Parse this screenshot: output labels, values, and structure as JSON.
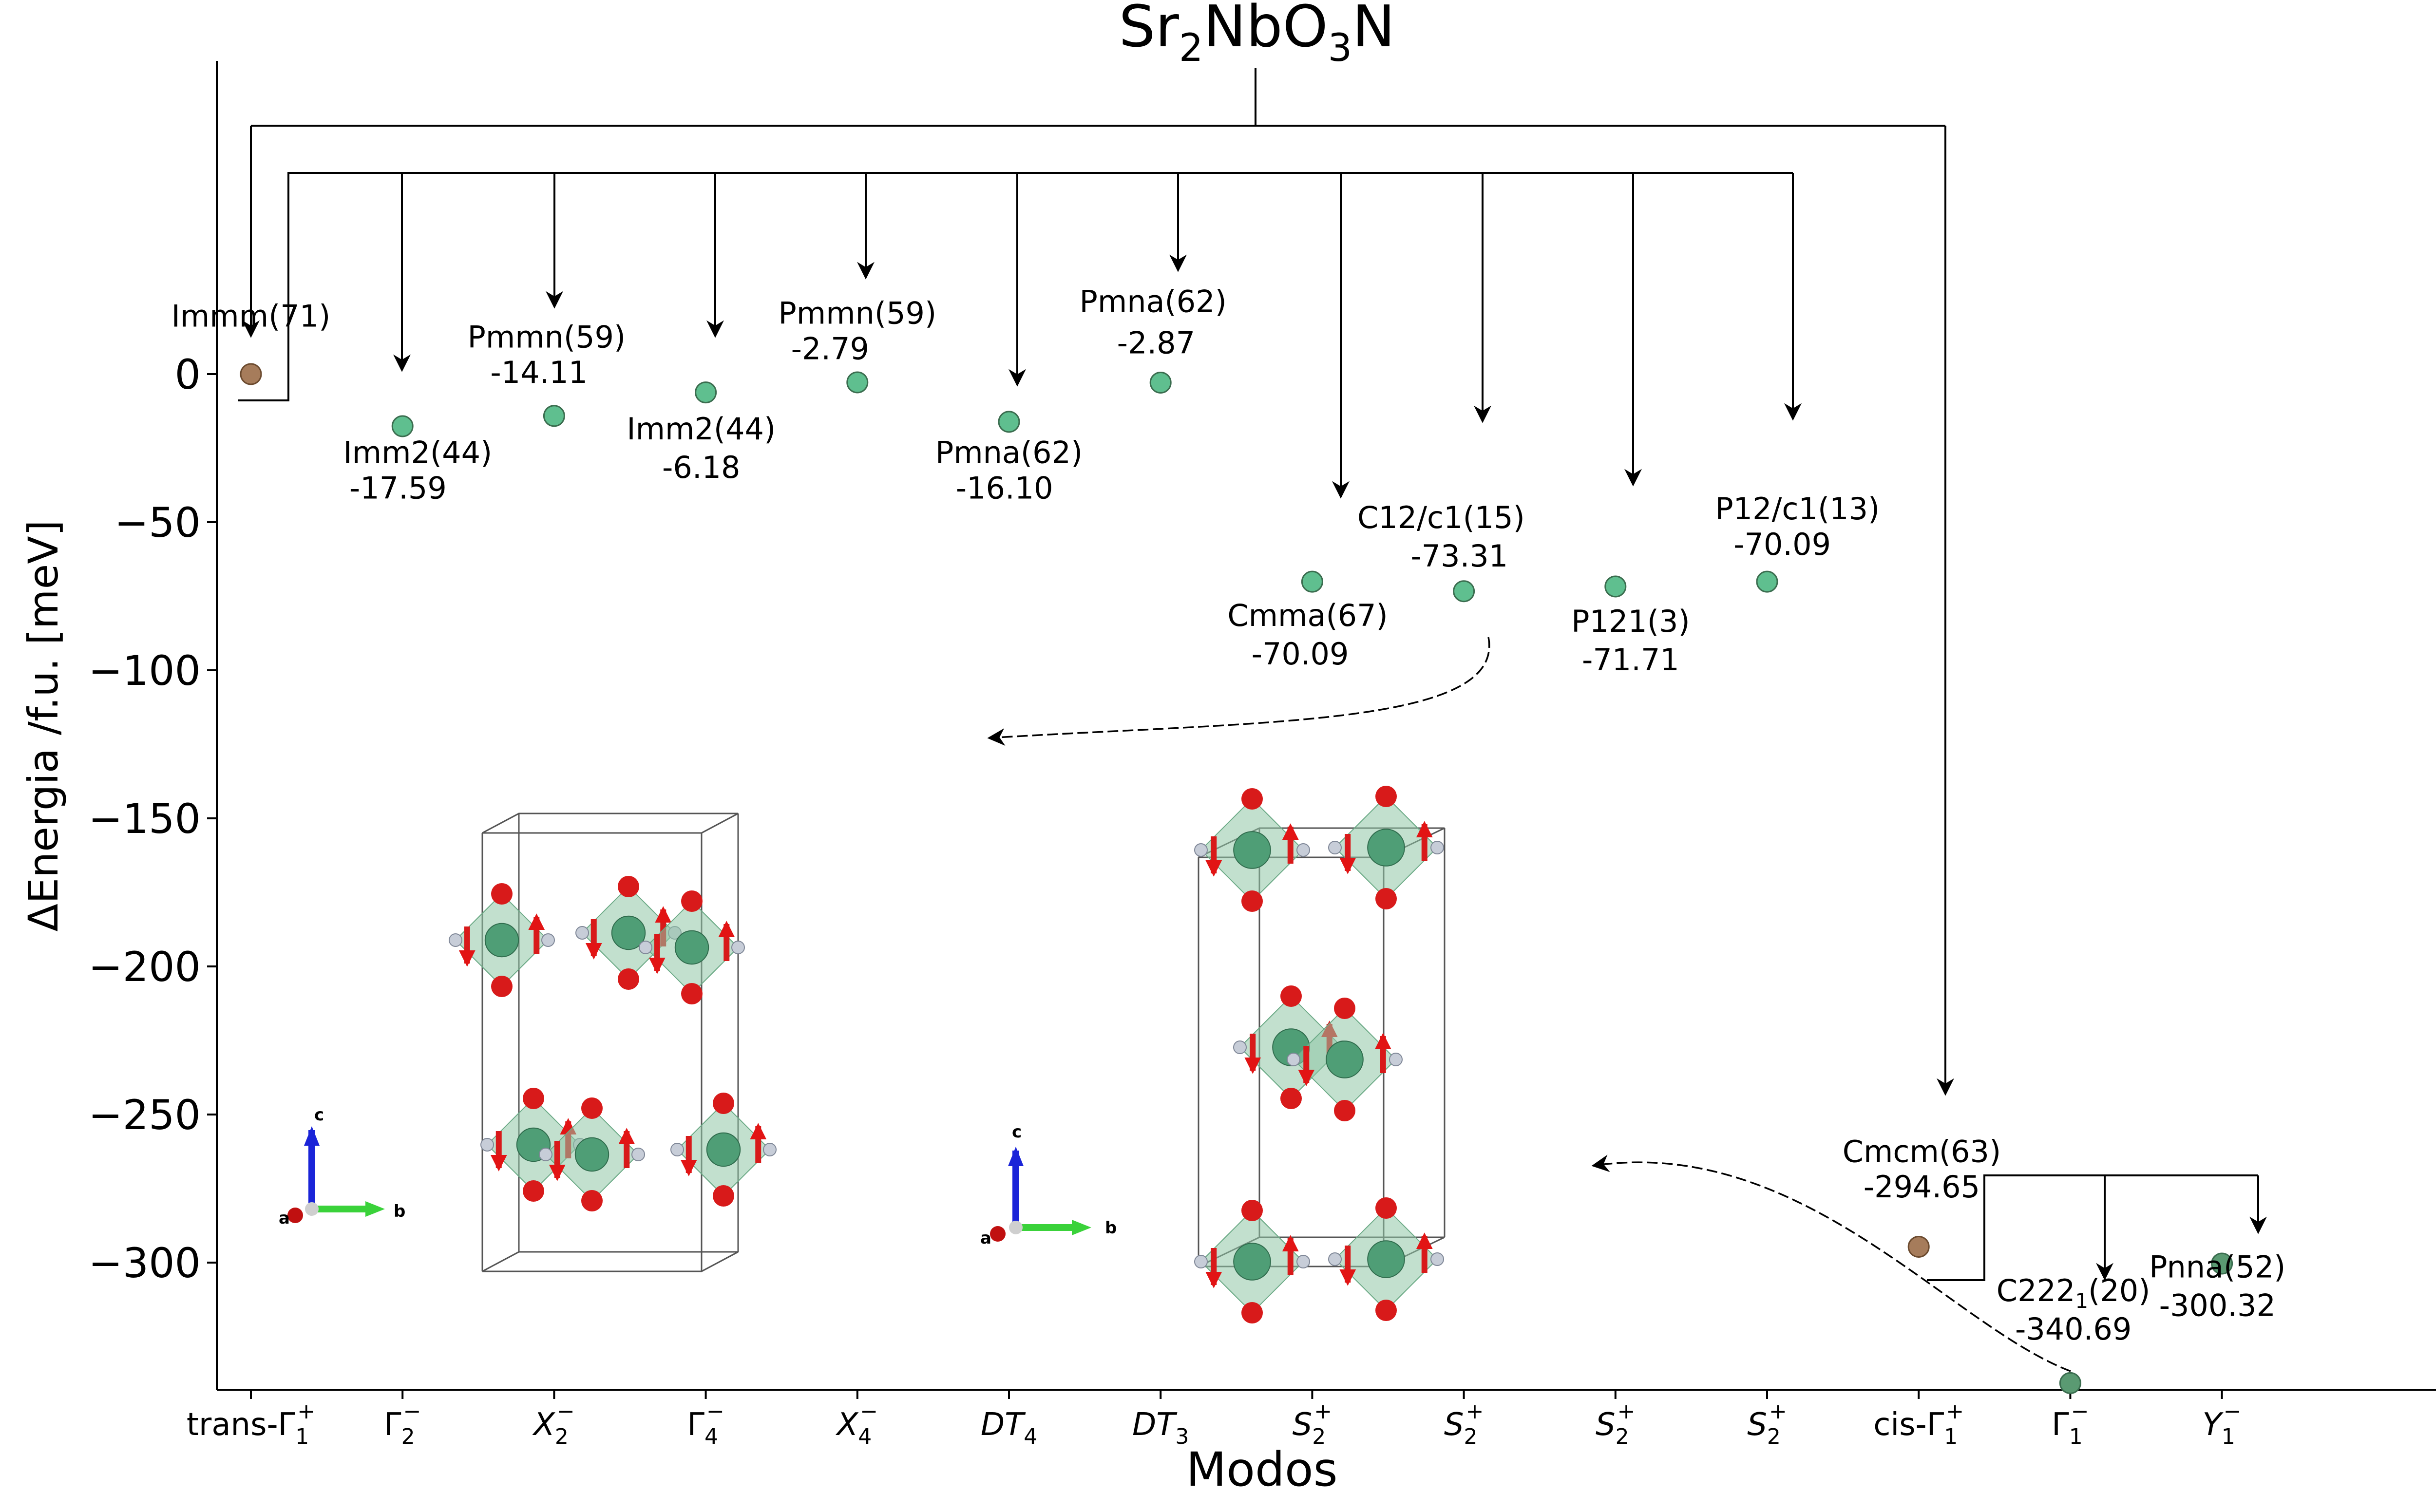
{
  "chart_data": {
    "type": "scatter",
    "title": "Sr2NbO3N",
    "title_parts": [
      "Sr",
      "2",
      "NbO",
      "3",
      "N"
    ],
    "title_color": "#7a5133",
    "xlabel": "Modos",
    "ylabel": "ΔEnergia /f.u. [meV]",
    "ylim": [
      -343,
      42
    ],
    "yticks": [
      0,
      -50,
      -100,
      -150,
      -200,
      -250,
      -300
    ],
    "ytick_labels": [
      "0",
      "−50",
      "−100",
      "−150",
      "−200",
      "−250",
      "−300"
    ],
    "x_ticks": [
      {
        "base": "trans-Γ",
        "sub": "1",
        "sup": "+",
        "italic": false
      },
      {
        "base": "Γ",
        "sub": "2",
        "sup": "−",
        "italic": false
      },
      {
        "base": "X",
        "sub": "2",
        "sup": "−",
        "italic": true
      },
      {
        "base": "Γ",
        "sub": "4",
        "sup": "−",
        "italic": false
      },
      {
        "base": "X",
        "sub": "4",
        "sup": "−",
        "italic": true
      },
      {
        "base": "DT",
        "sub": "4",
        "sup": "",
        "italic": true
      },
      {
        "base": "DT",
        "sub": "3",
        "sup": "",
        "italic": true
      },
      {
        "base": "S",
        "sub": "2",
        "sup": "+",
        "italic": true
      },
      {
        "base": "S",
        "sub": "2",
        "sup": "+",
        "italic": true
      },
      {
        "base": "S",
        "sub": "2",
        "sup": "+",
        "italic": true
      },
      {
        "base": "S",
        "sub": "2",
        "sup": "+",
        "italic": true
      },
      {
        "base": "cis-Γ",
        "sub": "1",
        "sup": "+",
        "italic": false
      },
      {
        "base": "Γ",
        "sub": "1",
        "sup": "−",
        "italic": false
      },
      {
        "base": "Y",
        "sub": "1",
        "sup": "−",
        "italic": true
      }
    ],
    "points": [
      {
        "x": 0,
        "y": 0,
        "group": "Immm(71)",
        "value": "",
        "color": "#a67c5b"
      },
      {
        "x": 1,
        "y": -17.59,
        "group": "Imm2(44)",
        "value": "-17.59",
        "color": "#5fbf8f"
      },
      {
        "x": 2,
        "y": -14.11,
        "group": "Pmmn(59)",
        "value": "-14.11",
        "color": "#5fbf8f"
      },
      {
        "x": 3,
        "y": -6.18,
        "group": "Imm2(44)",
        "value": "-6.18",
        "color": "#5fbf8f"
      },
      {
        "x": 4,
        "y": -2.79,
        "group": "Pmmn(59)",
        "value": "-2.79",
        "color": "#5fbf8f"
      },
      {
        "x": 5,
        "y": -16.1,
        "group": "Pmna(62)",
        "value": "-16.10",
        "color": "#5fbf8f"
      },
      {
        "x": 6,
        "y": -2.87,
        "group": "Pmna(62)",
        "value": "-2.87",
        "color": "#5fbf8f"
      },
      {
        "x": 7,
        "y": -70.09,
        "group": "Cmma(67)",
        "value": "-70.09",
        "color": "#5fbf8f"
      },
      {
        "x": 8,
        "y": -73.31,
        "group": "C12/c1(15)",
        "value": "-73.31",
        "color": "#5fbf8f"
      },
      {
        "x": 9,
        "y": -71.71,
        "group": "P121(3)",
        "value": "-71.71",
        "color": "#5fbf8f"
      },
      {
        "x": 10,
        "y": -70.09,
        "group": "P12/c1(13)",
        "value": "-70.09",
        "color": "#5fbf8f"
      },
      {
        "x": 11,
        "y": -294.65,
        "group": "Cmcm(63)",
        "value": "-294.65",
        "color": "#a67c5b"
      },
      {
        "x": 12,
        "y": -340.69,
        "group": "C2221(20)",
        "value": "-340.69",
        "color": "#5a9a72"
      },
      {
        "x": 13,
        "y": -300.32,
        "group": "Pnna(52)",
        "value": "-300.32",
        "color": "#5a9a72"
      }
    ],
    "annotations": [
      {
        "text": "Immm(71)",
        "x": 0,
        "y": 16
      },
      {
        "text": "Imm2(44)",
        "x": 1.1,
        "y": -30
      },
      {
        "text": "-17.59",
        "x": 0.97,
        "y": -42
      },
      {
        "text": "Pmmn(59)",
        "x": 1.95,
        "y": 9
      },
      {
        "text": "-14.11",
        "x": 1.9,
        "y": -3
      },
      {
        "text": "Imm2(44)",
        "x": 2.97,
        "y": -22
      },
      {
        "text": "-6.18",
        "x": 2.97,
        "y": -35
      },
      {
        "text": "Pmmn(59)",
        "x": 4.0,
        "y": 17
      },
      {
        "text": "-2.79",
        "x": 3.82,
        "y": 5
      },
      {
        "text": "Pmna(62)",
        "x": 5.0,
        "y": -30
      },
      {
        "text": "-16.10",
        "x": 4.97,
        "y": -42
      },
      {
        "text": "Pmna(62)",
        "x": 5.95,
        "y": 21
      },
      {
        "text": "-2.87",
        "x": 5.97,
        "y": 7
      },
      {
        "text": "Cmma(67)",
        "x": 6.97,
        "y": -85
      },
      {
        "text": "-70.09",
        "x": 6.92,
        "y": -98
      },
      {
        "text": "C12/c1(15)",
        "x": 7.85,
        "y": -52
      },
      {
        "text": "-73.31",
        "x": 7.97,
        "y": -65
      },
      {
        "text": "P121(3)",
        "x": 9.1,
        "y": -87
      },
      {
        "text": "-71.71",
        "x": 9.1,
        "y": -100
      },
      {
        "text": "P12/c1(13)",
        "x": 10.2,
        "y": -49
      },
      {
        "text": "-70.09",
        "x": 10.1,
        "y": -61
      },
      {
        "text": "Cmcm(63)",
        "x": 11.02,
        "y": -266
      },
      {
        "text": "-294.65",
        "x": 11.02,
        "y": -278
      },
      {
        "text": "-340.69",
        "x": 12.02,
        "y": -326
      },
      {
        "text": "Pnna(52)",
        "x": 12.97,
        "y": -305
      },
      {
        "text": "-300.32",
        "x": 12.97,
        "y": -318
      }
    ],
    "c2221_label": {
      "base": "C222",
      "sub": "1",
      "tail": "(20)",
      "x": 12.02,
      "y": -313
    },
    "axis_labels_3d": {
      "c": "c",
      "a": "a",
      "b": "b"
    },
    "colors": {
      "green_point": "#5fbf8f",
      "brown_point": "#a67c5b",
      "dark_green_point": "#5a9a72",
      "title": "#7a5133",
      "atom_red": "#d81a1a",
      "octahedron": "#8fc6a6",
      "nb_atom": "#4f9e76",
      "n_atom": "#c7cdd8"
    }
  }
}
